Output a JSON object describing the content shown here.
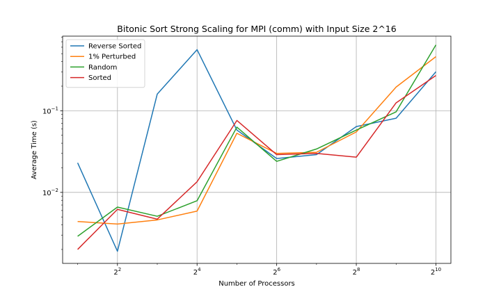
{
  "chart_data": {
    "type": "line",
    "title": "Bitonic Sort Strong Scaling for MPI (comm) with Input Size 2^16",
    "xlabel": "Number of Processors",
    "ylabel": "Average Time (s)",
    "x_scale": "log2",
    "y_scale": "log10",
    "x": [
      2,
      4,
      8,
      16,
      32,
      64,
      128,
      256,
      512,
      1024
    ],
    "xlim": [
      1.54,
      1329
    ],
    "ylim": [
      0.00135,
      0.82
    ],
    "x_ticks": [
      {
        "value": 4,
        "base": "2",
        "exp": "2"
      },
      {
        "value": 16,
        "base": "2",
        "exp": "4"
      },
      {
        "value": 64,
        "base": "2",
        "exp": "6"
      },
      {
        "value": 256,
        "base": "2",
        "exp": "8"
      },
      {
        "value": 1024,
        "base": "2",
        "exp": "10"
      }
    ],
    "y_ticks": [
      {
        "value": 0.01,
        "base": "10",
        "exp": "−2"
      },
      {
        "value": 0.1,
        "base": "10",
        "exp": "−1"
      }
    ],
    "grid": true,
    "legend_position": "top-left",
    "series": [
      {
        "name": "Reverse Sorted",
        "color": "#1f77b4",
        "values": [
          0.023,
          0.0019,
          0.16,
          0.56,
          0.058,
          0.026,
          0.029,
          0.064,
          0.081,
          0.3
        ]
      },
      {
        "name": "1% Perturbed",
        "color": "#ff7f0e",
        "values": [
          0.0044,
          0.0041,
          0.0046,
          0.0059,
          0.053,
          0.03,
          0.031,
          0.055,
          0.195,
          0.46
        ]
      },
      {
        "name": "Random",
        "color": "#2ca02c",
        "values": [
          0.0029,
          0.0066,
          0.0051,
          0.0079,
          0.063,
          0.024,
          0.034,
          0.058,
          0.097,
          0.64
        ]
      },
      {
        "name": "Sorted",
        "color": "#d62728",
        "values": [
          0.002,
          0.0062,
          0.0047,
          0.0135,
          0.076,
          0.029,
          0.03,
          0.027,
          0.125,
          0.27
        ]
      }
    ]
  }
}
